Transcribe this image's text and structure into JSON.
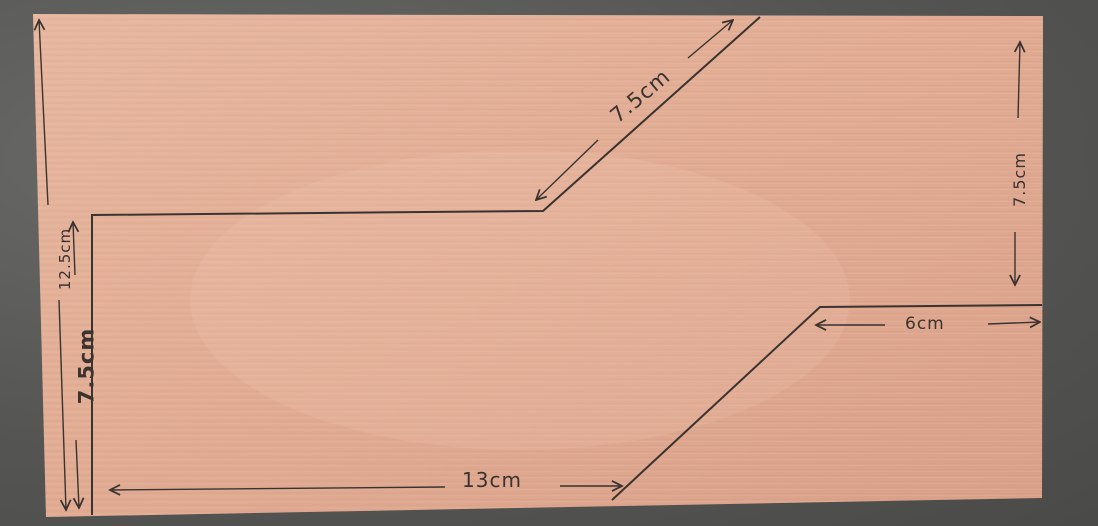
{
  "photo": {
    "subject": "plywood-board",
    "board_color": "#e2ae95",
    "background_color": "#5b5b59",
    "pencil_color": "#3a3330"
  },
  "labels": {
    "diagonal_top": "7.5cm",
    "left_outer": "12.5cm",
    "left_inner": "7.5cm",
    "bottom": "13cm",
    "right_side": "7.5cm",
    "right_step": "6cm"
  }
}
